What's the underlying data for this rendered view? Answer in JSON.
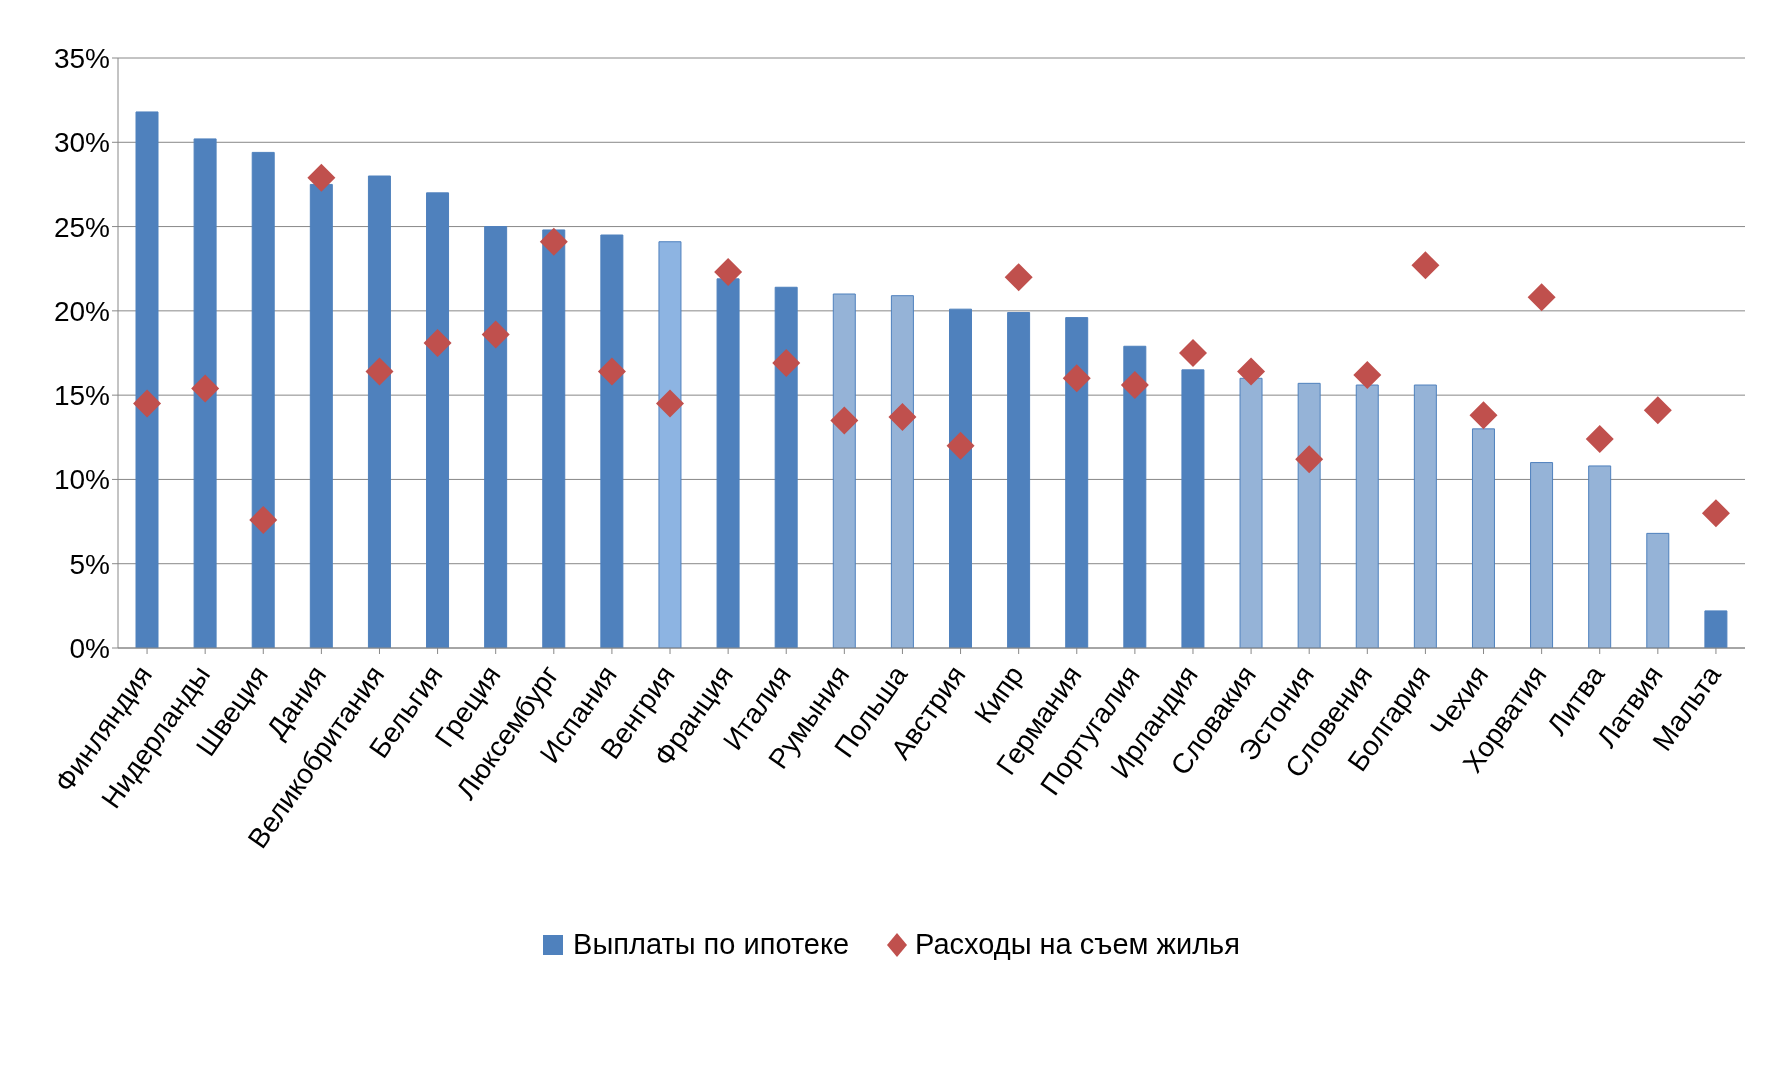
{
  "chart_data": {
    "type": "bar",
    "categories": [
      "Финляндия",
      "Нидерланды",
      "Швеция",
      "Дания",
      "Великобритания",
      "Бельгия",
      "Греция",
      "Люксембург",
      "Испания",
      "Венгрия",
      "Франция",
      "Италия",
      "Румыния",
      "Польша",
      "Австрия",
      "Кипр",
      "Германия",
      "Португалия",
      "Ирландия",
      "Словакия",
      "Эстония",
      "Словения",
      "Болгария",
      "Чехия",
      "Хорватия",
      "Литва",
      "Латвия",
      "Мальта"
    ],
    "series": [
      {
        "name": "Выплаты по ипотеке",
        "color": "#4f81bd",
        "colors": [
          "#4f81bd",
          "#4f81bd",
          "#4f81bd",
          "#4f81bd",
          "#4f81bd",
          "#4f81bd",
          "#4f81bd",
          "#4f81bd",
          "#4f81bd",
          "#8db4e2",
          "#4f81bd",
          "#4f81bd",
          "#95b3d7",
          "#95b3d7",
          "#4f81bd",
          "#4f81bd",
          "#4f81bd",
          "#4f81bd",
          "#4f81bd",
          "#95b3d7",
          "#95b3d7",
          "#95b3d7",
          "#95b3d7",
          "#95b3d7",
          "#95b3d7",
          "#95b3d7",
          "#95b3d7",
          "#4f81bd"
        ],
        "values": [
          31.8,
          30.2,
          29.4,
          27.5,
          28.0,
          27.0,
          25.0,
          24.8,
          24.5,
          24.1,
          21.9,
          21.4,
          21.0,
          20.9,
          20.1,
          19.9,
          19.6,
          17.9,
          16.5,
          16.0,
          15.7,
          15.6,
          15.6,
          13.0,
          11.0,
          10.8,
          6.8,
          2.2
        ]
      },
      {
        "name": "Расходы на съем жилья",
        "type": "scatter",
        "marker": "diamond",
        "color": "#c0504d",
        "values": [
          14.5,
          15.4,
          7.6,
          27.9,
          16.4,
          18.1,
          18.6,
          24.1,
          16.4,
          14.5,
          22.3,
          16.9,
          13.5,
          13.7,
          12.0,
          22.0,
          16.0,
          15.6,
          17.5,
          16.4,
          11.2,
          16.2,
          22.7,
          13.8,
          20.8,
          12.4,
          14.1,
          8.0
        ]
      }
    ],
    "ylim": [
      0,
      35
    ],
    "yticks": [
      {
        "value": 0,
        "label": "0%"
      },
      {
        "value": 5,
        "label": "5%"
      },
      {
        "value": 10,
        "label": "10%"
      },
      {
        "value": 15,
        "label": "15%"
      },
      {
        "value": 20,
        "label": "20%"
      },
      {
        "value": 25,
        "label": "25%"
      },
      {
        "value": 30,
        "label": "30%"
      },
      {
        "value": 35,
        "label": "35%"
      }
    ],
    "grid": "y",
    "legend": "bottom"
  }
}
